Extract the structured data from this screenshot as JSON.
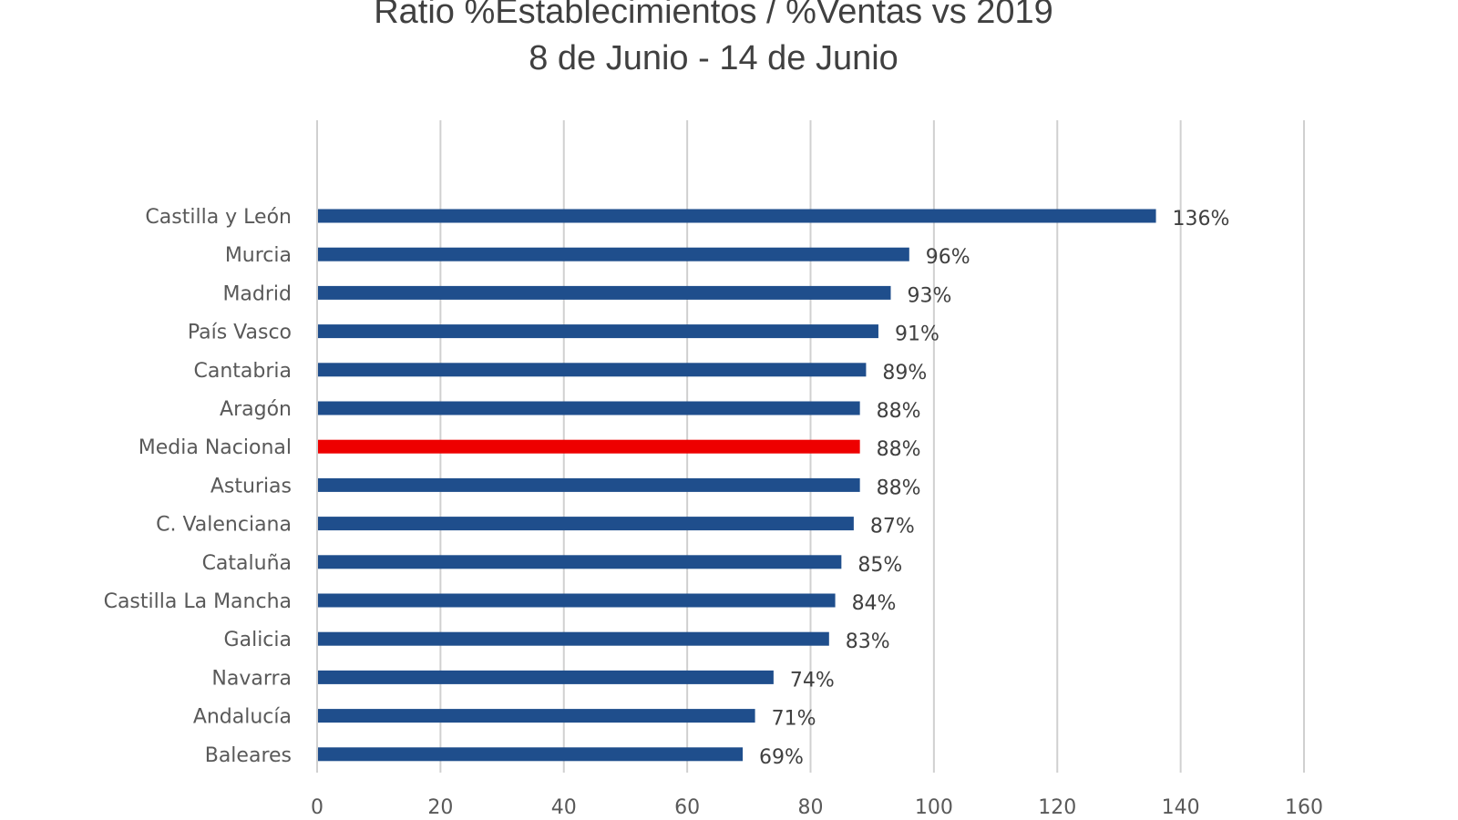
{
  "chart_data": {
    "type": "bar",
    "orientation": "horizontal",
    "title": "Ratio %Establecimientos / %Ventas vs 2019",
    "subtitle": "8 de Junio - 14 de Junio",
    "xlabel": "",
    "ylabel": "",
    "xlim": [
      0,
      160
    ],
    "x_ticks": [
      0,
      20,
      40,
      60,
      80,
      100,
      120,
      140,
      160
    ],
    "grid": true,
    "legend": "none",
    "categories": [
      "Castilla y León",
      "Murcia",
      "Madrid",
      "País Vasco",
      "Cantabria",
      "Aragón",
      "Media Nacional",
      "Asturias",
      "C. Valenciana",
      "Cataluña",
      "Castilla La Mancha",
      "Galicia",
      "Navarra",
      "Andalucía",
      "Baleares"
    ],
    "values": [
      136,
      96,
      93,
      91,
      89,
      88,
      88,
      88,
      87,
      85,
      84,
      83,
      74,
      71,
      69
    ],
    "data_labels": [
      "136%",
      "96%",
      "93%",
      "91%",
      "89%",
      "88%",
      "88%",
      "88%",
      "87%",
      "85%",
      "84%",
      "83%",
      "74%",
      "71%",
      "69%"
    ],
    "highlight_category": "Media Nacional",
    "colors": {
      "bar": "#1f4e8c",
      "highlight": "#ee0000",
      "grid": "#d0d0d0",
      "text": "#595959"
    }
  }
}
